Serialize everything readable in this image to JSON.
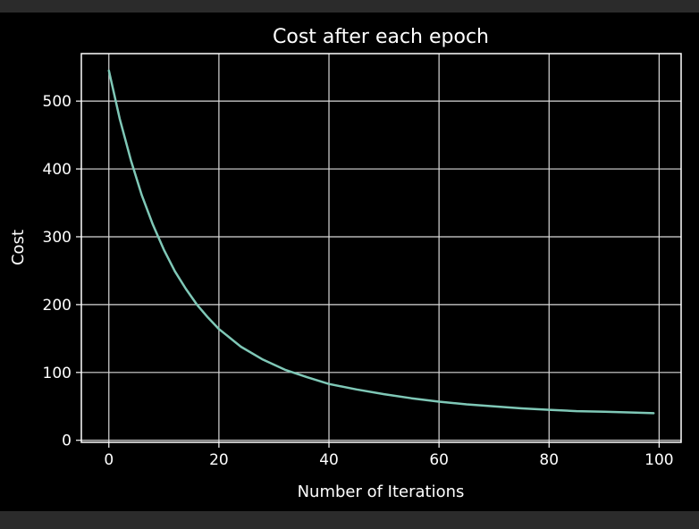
{
  "chart_data": {
    "type": "line",
    "title": "Cost after each epoch",
    "xlabel": "Number of Iterations",
    "ylabel": "Cost",
    "xlim": [
      -5,
      104
    ],
    "ylim": [
      -3,
      570
    ],
    "xticks": [
      0,
      20,
      40,
      60,
      80,
      100
    ],
    "yticks": [
      0,
      100,
      200,
      300,
      400,
      500
    ],
    "grid": true,
    "colors": {
      "background": "#000000",
      "outer": "#2b2b2b",
      "grid": "#d9d9d9",
      "axes": "#ffffff",
      "line": "#7fc8b7"
    },
    "series": [
      {
        "x": [
          0,
          2,
          4,
          6,
          8,
          10,
          12,
          14,
          16,
          18,
          20,
          24,
          28,
          32,
          36,
          40,
          45,
          50,
          55,
          60,
          65,
          70,
          75,
          80,
          85,
          90,
          95,
          99
        ],
        "values": [
          545,
          473,
          413,
          361,
          318,
          281,
          249,
          223,
          200,
          181,
          164,
          138,
          119,
          104,
          93,
          83,
          75,
          68,
          62,
          57,
          53,
          50,
          47,
          45,
          43,
          42,
          41,
          40
        ]
      }
    ]
  }
}
